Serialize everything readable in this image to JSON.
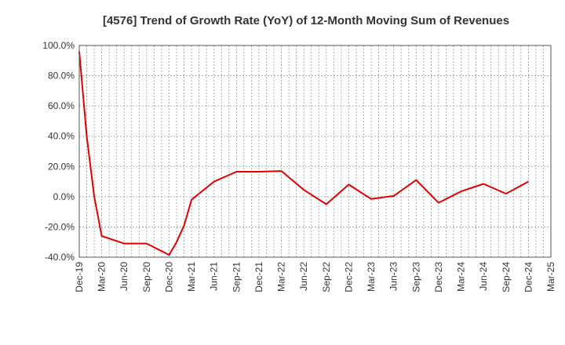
{
  "chart_data": {
    "type": "line",
    "title": "[4576]  Trend of Growth Rate (YoY) of 12-Month Moving Sum of Revenues",
    "xlabel": "",
    "ylabel": "",
    "ylim": [
      -40,
      100
    ],
    "y_ticks": [
      "100.0%",
      "80.0%",
      "60.0%",
      "40.0%",
      "20.0%",
      "0.0%",
      "-20.0%",
      "-40.0%"
    ],
    "x_ticks": [
      "Dec-19",
      "Mar-20",
      "Jun-20",
      "Sep-20",
      "Dec-20",
      "Mar-21",
      "Jun-21",
      "Sep-21",
      "Dec-21",
      "Mar-22",
      "Jun-22",
      "Sep-22",
      "Dec-22",
      "Mar-23",
      "Jun-23",
      "Sep-23",
      "Dec-23",
      "Mar-24",
      "Jun-24",
      "Sep-24",
      "Dec-24",
      "Mar-25"
    ],
    "grid": true,
    "line_color": "#e00000",
    "series": [
      {
        "x": [
          "Dec-19",
          "Jan-20",
          "Feb-20",
          "Mar-20",
          "Jun-20",
          "Sep-20",
          "Dec-20",
          "Jan-21",
          "Feb-21",
          "Mar-21",
          "Jun-21",
          "Sep-21",
          "Dec-21",
          "Mar-22",
          "Jun-22",
          "Sep-22",
          "Dec-22",
          "Mar-23",
          "Jun-23",
          "Sep-23",
          "Dec-23",
          "Mar-24",
          "Jun-24",
          "Sep-24",
          "Dec-24"
        ],
        "values": [
          96.0,
          40.0,
          0.0,
          -26.0,
          -31.0,
          -31.0,
          -38.5,
          -30.0,
          -19.0,
          -2.0,
          10.0,
          16.5,
          16.5,
          17.0,
          4.5,
          -5.0,
          8.0,
          -1.5,
          0.5,
          11.0,
          -4.0,
          3.5,
          8.5,
          2.0,
          10.0
        ]
      }
    ]
  }
}
